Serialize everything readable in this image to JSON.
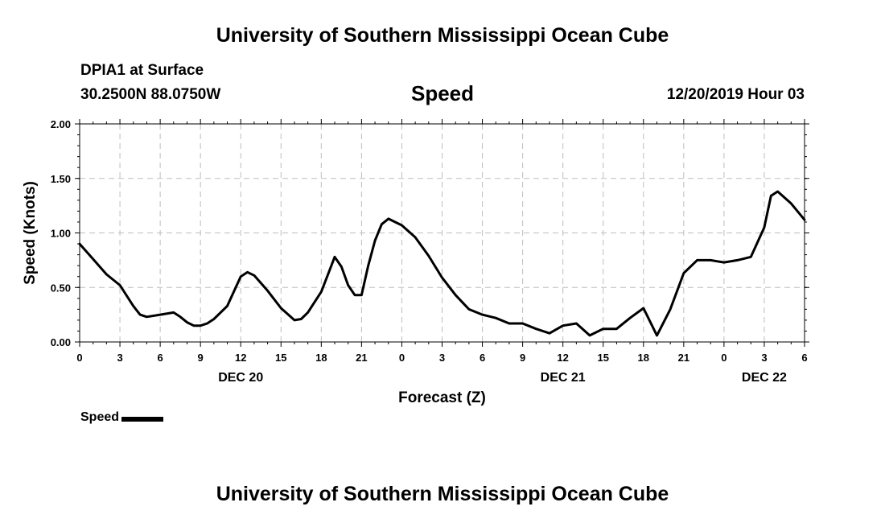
{
  "header": {
    "title": "University of Southern Mississippi Ocean Cube",
    "station": "DPIA1 at Surface",
    "coords": "30.2500N 88.0750W",
    "variable": "Speed",
    "datetime": "12/20/2019 Hour 03"
  },
  "footer": {
    "title": "University of Southern Mississippi Ocean Cube"
  },
  "legend": {
    "label": "Speed"
  },
  "chart_data": {
    "type": "line",
    "title": "Speed",
    "xlabel": "Forecast (Z)",
    "ylabel": "Speed (Knots)",
    "ylim": [
      0,
      2
    ],
    "xlim": [
      0,
      54
    ],
    "x_unit": "hours since 00Z DEC 20",
    "grid": true,
    "legend_placement": "bottom-left",
    "yticks": [
      "0.00",
      "0.50",
      "1.00",
      "1.50",
      "2.00"
    ],
    "xtick_labels": [
      "0",
      "3",
      "6",
      "9",
      "12",
      "15",
      "18",
      "21",
      "0",
      "3",
      "6",
      "9",
      "12",
      "15",
      "18",
      "21",
      "0",
      "3",
      "6"
    ],
    "date_labels": [
      {
        "label": "DEC 20",
        "x": 12
      },
      {
        "label": "DEC 21",
        "x": 36
      },
      {
        "label": "DEC 22",
        "x": 51
      }
    ],
    "series": [
      {
        "name": "Speed",
        "color": "#000000",
        "x": [
          0,
          1,
          2,
          3,
          4,
          4.5,
          5,
          6,
          7,
          7.5,
          8,
          8.5,
          9,
          9.5,
          10,
          11,
          12,
          12.5,
          13,
          14,
          15,
          16,
          16.5,
          17,
          18,
          18.5,
          19,
          19.5,
          20,
          20.5,
          21,
          21.5,
          22,
          22.5,
          23,
          24,
          25,
          26,
          27,
          28,
          29,
          30,
          31,
          32,
          33,
          34,
          35,
          36,
          37,
          38,
          39,
          40,
          41,
          42,
          43,
          44,
          45,
          46,
          47,
          48,
          49,
          50,
          51,
          51.5,
          52,
          53,
          54
        ],
        "y": [
          0.9,
          0.76,
          0.62,
          0.52,
          0.33,
          0.25,
          0.23,
          0.25,
          0.27,
          0.23,
          0.18,
          0.15,
          0.15,
          0.17,
          0.21,
          0.33,
          0.6,
          0.64,
          0.61,
          0.47,
          0.31,
          0.2,
          0.21,
          0.27,
          0.46,
          0.62,
          0.78,
          0.69,
          0.52,
          0.43,
          0.43,
          0.7,
          0.93,
          1.08,
          1.13,
          1.07,
          0.96,
          0.79,
          0.59,
          0.43,
          0.3,
          0.25,
          0.22,
          0.17,
          0.17,
          0.12,
          0.08,
          0.15,
          0.17,
          0.06,
          0.12,
          0.12,
          0.22,
          0.31,
          0.06,
          0.3,
          0.63,
          0.75,
          0.75,
          0.73,
          0.75,
          0.78,
          1.05,
          1.34,
          1.38,
          1.27,
          1.12
        ]
      }
    ]
  }
}
